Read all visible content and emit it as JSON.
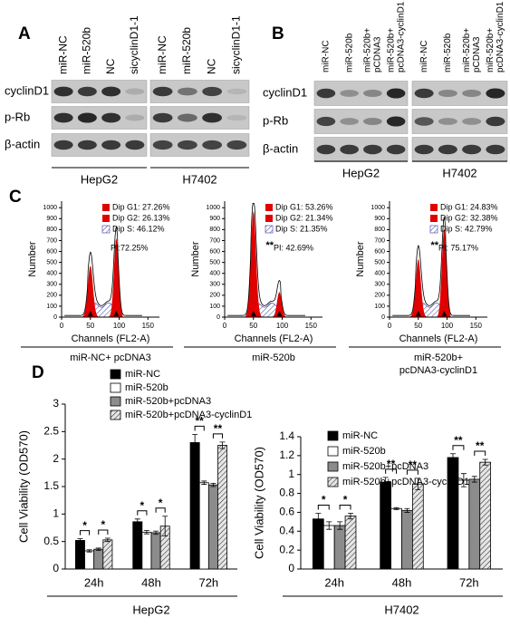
{
  "panel_a": {
    "label": "A",
    "lanes": [
      [
        "miR-NC"
      ],
      [
        "miR-520b"
      ],
      [
        "NC"
      ],
      [
        "sicyclinD1-1"
      ]
    ],
    "proteins": [
      "cyclinD1",
      "p-Rb",
      "β-actin"
    ],
    "cell_lines": [
      "HepG2",
      "H7402"
    ]
  },
  "panel_b": {
    "label": "B",
    "lanes": [
      [
        "miR-NC"
      ],
      [
        "miR-520b"
      ],
      [
        "miR-520b+",
        "pCDNA3"
      ],
      [
        "miR-520b+",
        "pcDNA3-cyclinD1"
      ]
    ],
    "proteins": [
      "cyclinD1",
      "p-Rb",
      "β-actin"
    ],
    "cell_lines": [
      "HepG2",
      "H7402"
    ]
  },
  "panel_c": {
    "label": "C",
    "xlabel": "Channels (FL2-A)",
    "ylabel": "Number",
    "xlim": [
      0,
      170
    ],
    "xticks": [
      0,
      50,
      100,
      150
    ],
    "ylim": [
      0,
      1060
    ],
    "yticks": [
      0,
      100,
      200,
      300,
      400,
      500,
      600,
      700,
      800,
      900,
      1000
    ],
    "histograms": [
      {
        "legend": [
          "Dip G1: 27.26%",
          "Dip G2: 26.13%",
          "Dip S: 46.12%"
        ],
        "pi": "PI:72.25%",
        "caption": [
          "miR-NC+ pcDNA3"
        ]
      },
      {
        "legend": [
          "Dip G1: 53.26%",
          "Dip G2: 21.34%",
          "Dip S: 21.35%"
        ],
        "significance": "**",
        "pi": "PI: 42.69%",
        "caption": [
          "miR-520b"
        ]
      },
      {
        "legend": [
          "Dip G1: 24.83%",
          "Dip G2: 32.38%",
          "Dip S: 42.79%"
        ],
        "significance": "**",
        "pi": "PI: 75.17%",
        "caption": [
          "miR-520b+",
          "pcDNA3-cyclinD1"
        ]
      }
    ]
  },
  "panel_d": {
    "label": "D"
  },
  "chart_data": [
    {
      "type": "bar",
      "ylabel": "Cell Viability (OD570)",
      "group": "HepG2",
      "categories": [
        "24h",
        "48h",
        "72h"
      ],
      "ylim": [
        0,
        3
      ],
      "yticks": [
        0,
        0.5,
        1,
        1.5,
        2,
        2.5,
        3
      ],
      "series": [
        {
          "name": "miR-NC",
          "color": "#000000",
          "values": [
            0.52,
            0.86,
            2.3
          ],
          "errors": [
            0.03,
            0.05,
            0.15
          ]
        },
        {
          "name": "miR-520b",
          "color": "#ffffff",
          "values": [
            0.33,
            0.67,
            1.57
          ],
          "errors": [
            0.02,
            0.03,
            0.03
          ]
        },
        {
          "name": "miR-520b+pcDNA3",
          "color": "#8c8c8c",
          "values": [
            0.36,
            0.66,
            1.53
          ],
          "errors": [
            0.02,
            0.03,
            0.03
          ]
        },
        {
          "name": "miR-520b+pcDNA3-cyclinD1",
          "color": "#d9d9d9",
          "hatch": true,
          "values": [
            0.53,
            0.78,
            2.25
          ],
          "errors": [
            0.03,
            0.18,
            0.06
          ]
        }
      ],
      "significance": [
        [
          "*",
          "*"
        ],
        [
          "*",
          "*"
        ],
        [
          "**",
          "**"
        ]
      ]
    },
    {
      "type": "bar",
      "ylabel": "Cell Viability (OD570)",
      "group": "H7402",
      "categories": [
        "24h",
        "48h",
        "72h"
      ],
      "ylim": [
        0,
        1.4
      ],
      "yticks": [
        0,
        0.2,
        0.4,
        0.6,
        0.8,
        1,
        1.2,
        1.4
      ],
      "series": [
        {
          "name": "miR-NC",
          "color": "#000000",
          "values": [
            0.53,
            0.92,
            1.18
          ],
          "errors": [
            0.06,
            0.05,
            0.04
          ]
        },
        {
          "name": "miR-520b",
          "color": "#ffffff",
          "values": [
            0.46,
            0.64,
            0.94
          ],
          "errors": [
            0.04,
            0.01,
            0.07
          ]
        },
        {
          "name": "miR-520b+pcDNA3",
          "color": "#8c8c8c",
          "values": [
            0.46,
            0.62,
            0.95
          ],
          "errors": [
            0.04,
            0.02,
            0.03
          ]
        },
        {
          "name": "miR-520b+pcDNA3-cyclinD1",
          "color": "#d9d9d9",
          "hatch": true,
          "values": [
            0.56,
            0.9,
            1.13
          ],
          "errors": [
            0.03,
            0.06,
            0.03
          ]
        }
      ],
      "significance": [
        [
          "*",
          "*"
        ],
        [
          "**",
          "**"
        ],
        [
          "**",
          "**"
        ]
      ]
    }
  ]
}
